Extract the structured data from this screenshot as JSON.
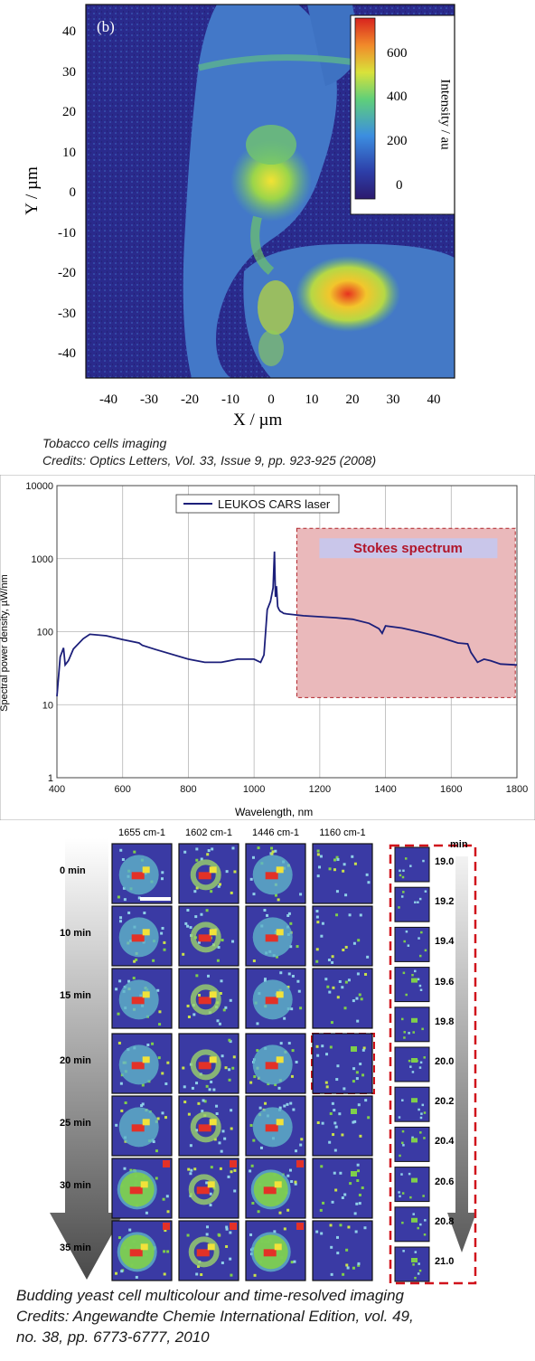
{
  "fig1": {
    "panel_label": "(b)",
    "xlabel": "X / µm",
    "ylabel": "Y / µm",
    "x_ticks": [
      "-40",
      "-30",
      "-20",
      "-10",
      "0",
      "10",
      "20",
      "30",
      "40"
    ],
    "y_ticks": [
      "40",
      "30",
      "20",
      "10",
      "0",
      "-10",
      "-20",
      "-30",
      "-40"
    ],
    "colorbar_ticks": [
      "600",
      "400",
      "200",
      "0"
    ],
    "colorbar_label": "Intensity / au",
    "caption_line1": "Tobacco cells imaging",
    "caption_line2": "Credits: Optics Letters, Vol. 33, Issue 9, pp. 923-925 (2008)"
  },
  "chart_data": {
    "type": "line",
    "xlabel": "Wavelength, nm",
    "ylabel": "Spectral power density, µW/nm",
    "xlim": [
      400,
      1800
    ],
    "ylim": [
      1,
      10000
    ],
    "yscale": "log",
    "grid": true,
    "legend": "top-center",
    "x_ticks": [
      "400",
      "600",
      "800",
      "1000",
      "1200",
      "1400",
      "1600",
      "1800"
    ],
    "y_ticks": [
      "10000",
      "1000",
      "100",
      "10",
      "1"
    ],
    "annotation": "Stokes spectrum",
    "series": [
      {
        "name": "LEUKOS CARS laser",
        "color": "#1c1f7a",
        "x": [
          400,
          410,
          420,
          425,
          435,
          450,
          480,
          500,
          550,
          600,
          650,
          660,
          700,
          800,
          850,
          900,
          950,
          1000,
          1020,
          1030,
          1040,
          1050,
          1058,
          1062,
          1065,
          1068,
          1072,
          1076,
          1080,
          1085,
          1090,
          1100,
          1150,
          1200,
          1250,
          1300,
          1350,
          1380,
          1390,
          1400,
          1450,
          1500,
          1550,
          1600,
          1620,
          1650,
          1660,
          1680,
          1700,
          1720,
          1750,
          1800
        ],
        "y": [
          13,
          45,
          60,
          35,
          40,
          58,
          80,
          92,
          88,
          78,
          70,
          65,
          57,
          42,
          38,
          38,
          42,
          42,
          38,
          48,
          200,
          260,
          400,
          1250,
          300,
          420,
          220,
          200,
          190,
          185,
          178,
          175,
          165,
          160,
          155,
          148,
          130,
          110,
          95,
          120,
          112,
          100,
          88,
          75,
          70,
          68,
          52,
          38,
          42,
          40,
          36,
          35
        ]
      }
    ]
  },
  "fig3": {
    "columns": [
      "1655 cm-1",
      "1602 cm-1",
      "1446 cm-1",
      "1160 cm-1"
    ],
    "rows": [
      "0 min",
      "10 min",
      "15 min",
      "20 min",
      "25 min",
      "30 min",
      "35 min"
    ],
    "zoom_header": "min",
    "zoom_times": [
      "19.0",
      "19.2",
      "19.4",
      "19.6",
      "19.8",
      "20.0",
      "20.2",
      "20.4",
      "20.6",
      "20.8",
      "21.0"
    ],
    "caption_line1": "Budding yeast cell multicolour and time-resolved imaging",
    "caption_line2": "Credits: Angewandte Chemie International Edition, vol. 49,",
    "caption_line3": "no. 38, pp. 6773-6777, 2010"
  },
  "colors": {
    "map_bg": "#2b2b8e",
    "cell": "#3f74c6",
    "green": "#7fcf4a",
    "yellow": "#f1e23a",
    "red": "#e33127",
    "stokes_fill": "#eab9bb",
    "stokes_border": "#b0242a",
    "dashed_red": "#d0131c"
  }
}
